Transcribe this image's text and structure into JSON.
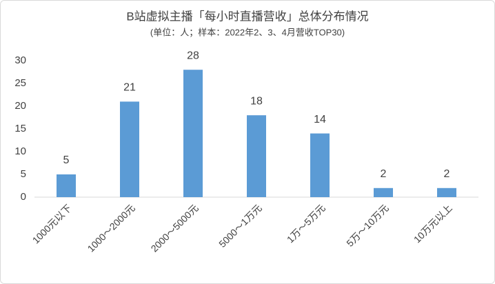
{
  "chart_data": {
    "type": "bar",
    "title": "B站虚拟主播「每小时直播营收」总体分布情况",
    "subtitle": "(单位：人；样本：2022年2、3、4月营收TOP30)",
    "categories": [
      "1000元以下",
      "1000～2000元",
      "2000～5000元",
      "5000～1万元",
      "1万～5万元",
      "5万～10万元",
      "10万元以上"
    ],
    "values": [
      5,
      21,
      28,
      18,
      14,
      2,
      2
    ],
    "color": "#5b9bd5",
    "ylim": [
      0,
      30
    ],
    "yticks": [
      0,
      5,
      10,
      15,
      20,
      25,
      30
    ],
    "grid": false
  }
}
